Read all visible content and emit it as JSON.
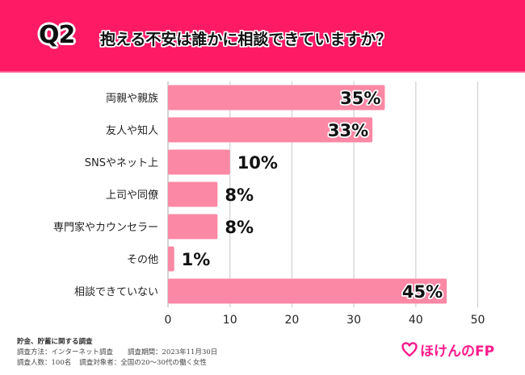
{
  "header": {
    "badge": "Q2",
    "question": "抱える不安は誰かに相談できていますか？"
  },
  "colors": {
    "header_bg": "#FF1A66",
    "bar": "#FB88A5",
    "grid": "#d0d0d0",
    "logo": "#FF1A8C"
  },
  "chart_data": {
    "type": "bar",
    "orientation": "horizontal",
    "title": "抱える不安は誰かに相談できていますか？",
    "categories": [
      "両親や親族",
      "友人や知人",
      "SNSやネット上",
      "上司や同僚",
      "専門家やカウンセラー",
      "その他",
      "相談できていない"
    ],
    "values": [
      35,
      33,
      10,
      8,
      8,
      1,
      45
    ],
    "value_labels": [
      "35%",
      "33%",
      "10%",
      "8%",
      "8%",
      "1%",
      "45%"
    ],
    "xlim": [
      0,
      50
    ],
    "xticks": [
      0,
      10,
      20,
      30,
      40,
      50
    ],
    "xtick_labels": [
      "0",
      "10",
      "20",
      "30",
      "40",
      "50"
    ],
    "xlabel": "",
    "ylabel": "",
    "grid": true,
    "unit": "%"
  },
  "footer": {
    "title": "貯金、貯蓄に関する調査",
    "method_label": "調査方法：インターネット調査",
    "period_label": "調査期間：2023年11月30日",
    "respondents_label": "調査人数：100名",
    "target_label": "調査対象者：全国の20～30代の働く女性"
  },
  "logo": {
    "icon": "heart-icon",
    "text": "ほけんのFP"
  }
}
